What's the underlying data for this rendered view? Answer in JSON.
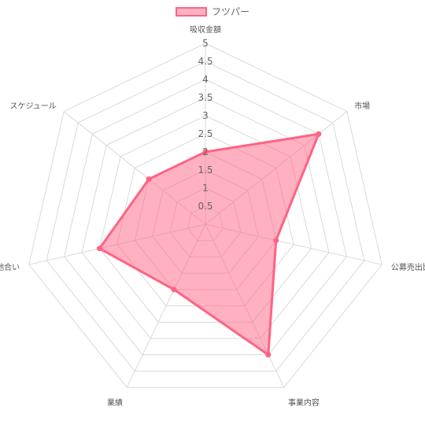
{
  "chart_data": {
    "type": "radar",
    "categories": [
      "吸収金額",
      "市場",
      "公募売出比",
      "事業内容",
      "業績",
      "地合い",
      "スケジュール"
    ],
    "series": [
      {
        "name": "フツパー",
        "values": [
          2,
          4,
          2,
          4,
          2,
          3,
          2
        ]
      }
    ],
    "rlim": [
      0,
      5
    ],
    "ticks": [
      "0.5",
      "1",
      "1.5",
      "2",
      "2.5",
      "3",
      "3.5",
      "4",
      "4.5",
      "5"
    ],
    "legend": "top",
    "grid": true,
    "colors": {
      "fill": "rgba(255,99,132,0.5)",
      "stroke": "#ff6384",
      "grid": "#d9d9d9"
    }
  }
}
